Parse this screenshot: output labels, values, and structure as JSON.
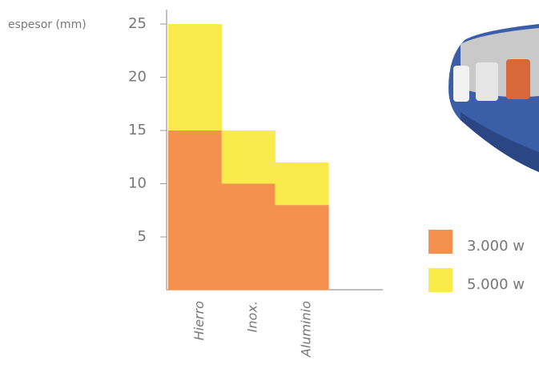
{
  "chart_data": {
    "type": "bar",
    "stacked": true,
    "y_label": "espesor (mm)",
    "categories": [
      "Hierro",
      "Inox.",
      "Aluminio"
    ],
    "series": [
      {
        "name": "3.000 w",
        "color": "#f4914f",
        "values": [
          15,
          10,
          8
        ]
      },
      {
        "name": "5.000 w",
        "color": "#f9eb4c",
        "values": [
          10,
          5,
          4
        ]
      }
    ],
    "ylim": [
      0,
      25
    ],
    "yticks": [
      5,
      10,
      15,
      20,
      25
    ],
    "legend": "right"
  }
}
